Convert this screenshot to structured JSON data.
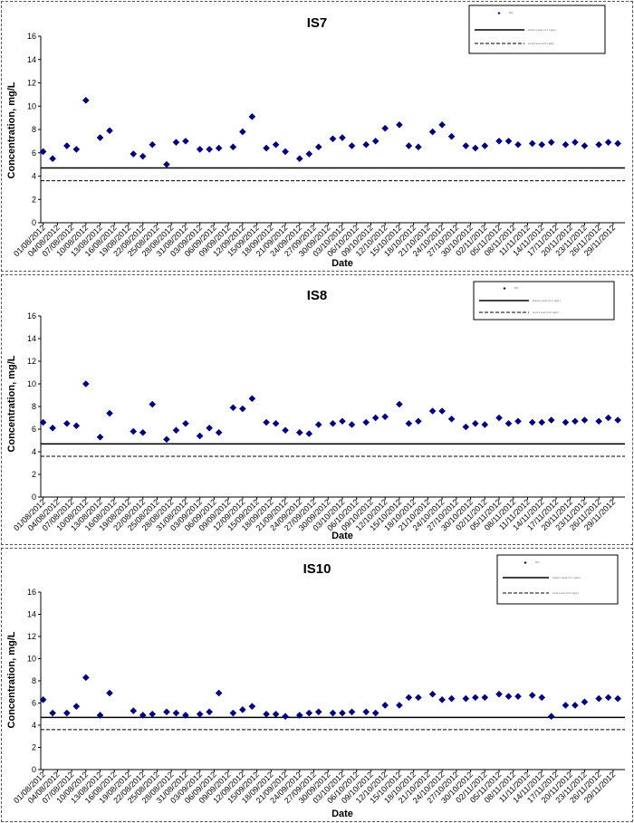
{
  "chart_data": [
    {
      "type": "scatter",
      "title": "IS7",
      "xlabel": "Date",
      "ylabel": "Concentration, mg/L",
      "ylim": [
        0,
        16
      ],
      "yticks": [
        "0",
        "2",
        "4",
        "6",
        "8",
        "10",
        "12",
        "14",
        "16"
      ],
      "x_tick_labels": [
        "01/08/2012",
        "04/08/2012",
        "07/08/2012",
        "10/08/2012",
        "13/08/2012",
        "16/08/2012",
        "19/08/2012",
        "22/08/2012",
        "25/08/2012",
        "28/08/2012",
        "31/08/2012",
        "03/09/2012",
        "06/09/2012",
        "09/09/2012",
        "12/09/2012",
        "15/09/2012",
        "18/09/2012",
        "21/09/2012",
        "24/09/2012",
        "27/09/2012",
        "30/09/2012",
        "03/10/2012",
        "06/10/2012",
        "09/10/2012",
        "12/10/2012",
        "15/10/2012",
        "18/10/2012",
        "21/10/2012",
        "24/10/2012",
        "27/10/2012",
        "30/10/2012",
        "02/11/2012",
        "05/11/2012",
        "08/11/2012",
        "11/11/2012",
        "14/11/2012",
        "17/11/2012",
        "20/11/2012",
        "23/11/2012",
        "26/11/2012",
        "29/11/2012"
      ],
      "legend": {
        "position": "top-right",
        "entries": [
          "DO",
          "Action Level (4.7 mg/L)",
          "Limit Level (3.6 mg/L)"
        ]
      },
      "hlines": [
        {
          "name": "Action Level (4.7 mg/L)",
          "value": 4.7,
          "style": "solid"
        },
        {
          "name": "Limit Level (3.6 mg/L)",
          "value": 3.6,
          "style": "dashed"
        }
      ],
      "series": [
        {
          "name": "DO",
          "color": "#000080",
          "points": [
            [
              "01/08/2012",
              6.1
            ],
            [
              "03/08/2012",
              5.5
            ],
            [
              "06/08/2012",
              6.6
            ],
            [
              "08/08/2012",
              6.3
            ],
            [
              "10/08/2012",
              10.5
            ],
            [
              "13/08/2012",
              7.3
            ],
            [
              "15/08/2012",
              7.9
            ],
            [
              "20/08/2012",
              5.9
            ],
            [
              "22/08/2012",
              5.7
            ],
            [
              "24/08/2012",
              6.7
            ],
            [
              "27/08/2012",
              5.0
            ],
            [
              "29/08/2012",
              6.9
            ],
            [
              "31/08/2012",
              7.0
            ],
            [
              "03/09/2012",
              6.3
            ],
            [
              "05/09/2012",
              6.3
            ],
            [
              "07/09/2012",
              6.4
            ],
            [
              "10/09/2012",
              6.5
            ],
            [
              "12/09/2012",
              7.8
            ],
            [
              "14/09/2012",
              9.1
            ],
            [
              "17/09/2012",
              6.4
            ],
            [
              "19/09/2012",
              6.7
            ],
            [
              "21/09/2012",
              6.1
            ],
            [
              "24/09/2012",
              5.5
            ],
            [
              "26/09/2012",
              5.9
            ],
            [
              "28/09/2012",
              6.5
            ],
            [
              "01/10/2012",
              7.2
            ],
            [
              "03/10/2012",
              7.3
            ],
            [
              "05/10/2012",
              6.6
            ],
            [
              "08/10/2012",
              6.7
            ],
            [
              "10/10/2012",
              7.0
            ],
            [
              "12/10/2012",
              8.1
            ],
            [
              "15/10/2012",
              8.4
            ],
            [
              "17/10/2012",
              6.6
            ],
            [
              "19/10/2012",
              6.5
            ],
            [
              "22/10/2012",
              7.8
            ],
            [
              "24/10/2012",
              8.4
            ],
            [
              "26/10/2012",
              7.4
            ],
            [
              "29/10/2012",
              6.6
            ],
            [
              "31/10/2012",
              6.4
            ],
            [
              "02/11/2012",
              6.6
            ],
            [
              "05/11/2012",
              7.0
            ],
            [
              "07/11/2012",
              7.0
            ],
            [
              "09/11/2012",
              6.7
            ],
            [
              "12/11/2012",
              6.8
            ],
            [
              "14/11/2012",
              6.7
            ],
            [
              "16/11/2012",
              6.9
            ],
            [
              "19/11/2012",
              6.7
            ],
            [
              "21/11/2012",
              6.9
            ],
            [
              "23/11/2012",
              6.6
            ],
            [
              "26/11/2012",
              6.7
            ],
            [
              "28/11/2012",
              6.9
            ],
            [
              "30/11/2012",
              6.8
            ]
          ]
        }
      ]
    },
    {
      "type": "scatter",
      "title": "IS8",
      "xlabel": "Date",
      "ylabel": "Concentration, mg/L",
      "ylim": [
        0,
        16
      ],
      "yticks": [
        "0",
        "2",
        "4",
        "6",
        "8",
        "10",
        "12",
        "14",
        "16"
      ],
      "x_tick_labels": [
        "01/08/2012",
        "04/08/2012",
        "07/08/2012",
        "10/08/2012",
        "13/08/2012",
        "16/08/2012",
        "19/08/2012",
        "22/08/2012",
        "25/08/2012",
        "28/08/2012",
        "31/08/2012",
        "03/09/2012",
        "06/09/2012",
        "09/09/2012",
        "12/09/2012",
        "15/09/2012",
        "18/09/2012",
        "21/09/2012",
        "24/09/2012",
        "27/09/2012",
        "30/09/2012",
        "03/10/2012",
        "06/10/2012",
        "09/10/2012",
        "12/10/2012",
        "15/10/2012",
        "18/10/2012",
        "21/10/2012",
        "24/10/2012",
        "27/10/2012",
        "30/10/2012",
        "02/11/2012",
        "05/11/2012",
        "08/11/2012",
        "11/11/2012",
        "14/11/2012",
        "17/11/2012",
        "20/11/2012",
        "23/11/2012",
        "26/11/2012",
        "29/11/2012"
      ],
      "legend": {
        "position": "top-right",
        "entries": [
          "DO",
          "Action Level (4.7 mg/L)",
          "Limit Level (3.6 mg/L)"
        ]
      },
      "hlines": [
        {
          "name": "Action Level (4.7 mg/L)",
          "value": 4.7,
          "style": "solid"
        },
        {
          "name": "Limit Level (3.6 mg/L)",
          "value": 3.6,
          "style": "dashed"
        }
      ],
      "series": [
        {
          "name": "DO",
          "color": "#000080",
          "points": [
            [
              "01/08/2012",
              6.6
            ],
            [
              "03/08/2012",
              6.1
            ],
            [
              "06/08/2012",
              6.5
            ],
            [
              "08/08/2012",
              6.3
            ],
            [
              "10/08/2012",
              10.0
            ],
            [
              "13/08/2012",
              5.3
            ],
            [
              "15/08/2012",
              7.4
            ],
            [
              "20/08/2012",
              5.8
            ],
            [
              "22/08/2012",
              5.7
            ],
            [
              "24/08/2012",
              8.2
            ],
            [
              "27/08/2012",
              5.1
            ],
            [
              "29/08/2012",
              5.9
            ],
            [
              "31/08/2012",
              6.5
            ],
            [
              "03/09/2012",
              5.4
            ],
            [
              "05/09/2012",
              6.1
            ],
            [
              "07/09/2012",
              5.7
            ],
            [
              "10/09/2012",
              7.9
            ],
            [
              "12/09/2012",
              7.8
            ],
            [
              "14/09/2012",
              8.7
            ],
            [
              "17/09/2012",
              6.6
            ],
            [
              "19/09/2012",
              6.5
            ],
            [
              "21/09/2012",
              5.9
            ],
            [
              "24/09/2012",
              5.7
            ],
            [
              "26/09/2012",
              5.6
            ],
            [
              "28/09/2012",
              6.4
            ],
            [
              "01/10/2012",
              6.5
            ],
            [
              "03/10/2012",
              6.7
            ],
            [
              "05/10/2012",
              6.4
            ],
            [
              "08/10/2012",
              6.6
            ],
            [
              "10/10/2012",
              7.0
            ],
            [
              "12/10/2012",
              7.1
            ],
            [
              "15/10/2012",
              8.2
            ],
            [
              "17/10/2012",
              6.5
            ],
            [
              "19/10/2012",
              6.7
            ],
            [
              "22/10/2012",
              7.6
            ],
            [
              "24/10/2012",
              7.6
            ],
            [
              "26/10/2012",
              6.9
            ],
            [
              "29/10/2012",
              6.2
            ],
            [
              "31/10/2012",
              6.5
            ],
            [
              "02/11/2012",
              6.4
            ],
            [
              "05/11/2012",
              7.0
            ],
            [
              "07/11/2012",
              6.5
            ],
            [
              "09/11/2012",
              6.7
            ],
            [
              "12/11/2012",
              6.6
            ],
            [
              "14/11/2012",
              6.6
            ],
            [
              "16/11/2012",
              6.8
            ],
            [
              "19/11/2012",
              6.6
            ],
            [
              "21/11/2012",
              6.7
            ],
            [
              "23/11/2012",
              6.8
            ],
            [
              "26/11/2012",
              6.7
            ],
            [
              "28/11/2012",
              7.0
            ],
            [
              "30/11/2012",
              6.8
            ]
          ]
        }
      ]
    },
    {
      "type": "scatter",
      "title": "IS10",
      "xlabel": "Date",
      "ylabel": "Concentration, mg/L",
      "ylim": [
        0,
        16
      ],
      "yticks": [
        "0",
        "2",
        "4",
        "6",
        "8",
        "10",
        "12",
        "14",
        "16"
      ],
      "x_tick_labels": [
        "01/08/2012",
        "04/08/2012",
        "07/08/2012",
        "10/08/2012",
        "13/08/2012",
        "16/08/2012",
        "19/08/2012",
        "22/08/2012",
        "25/08/2012",
        "28/08/2012",
        "31/08/2012",
        "03/09/2012",
        "06/09/2012",
        "09/09/2012",
        "12/09/2012",
        "15/09/2012",
        "18/09/2012",
        "21/09/2012",
        "24/09/2012",
        "27/09/2012",
        "30/09/2012",
        "03/10/2012",
        "06/10/2012",
        "09/10/2012",
        "12/10/2012",
        "15/10/2012",
        "18/10/2012",
        "21/10/2012",
        "24/10/2012",
        "27/10/2012",
        "30/10/2012",
        "02/11/2012",
        "05/11/2012",
        "08/11/2012",
        "11/11/2012",
        "14/11/2012",
        "17/11/2012",
        "20/11/2012",
        "23/11/2012",
        "26/11/2012",
        "29/11/2012"
      ],
      "legend": {
        "position": "top-right",
        "entries": [
          "DO",
          "Action Level (4.7 mg/L)",
          "Limit Level (3.6 mg/L)"
        ]
      },
      "hlines": [
        {
          "name": "Action Level (4.7 mg/L)",
          "value": 4.7,
          "style": "solid"
        },
        {
          "name": "Limit Level (3.6 mg/L)",
          "value": 3.6,
          "style": "dashed"
        }
      ],
      "series": [
        {
          "name": "DO",
          "color": "#000080",
          "points": [
            [
              "01/08/2012",
              6.3
            ],
            [
              "03/08/2012",
              5.1
            ],
            [
              "06/08/2012",
              5.1
            ],
            [
              "08/08/2012",
              5.7
            ],
            [
              "10/08/2012",
              8.3
            ],
            [
              "13/08/2012",
              4.9
            ],
            [
              "15/08/2012",
              6.9
            ],
            [
              "20/08/2012",
              5.3
            ],
            [
              "22/08/2012",
              4.9
            ],
            [
              "24/08/2012",
              5.0
            ],
            [
              "27/08/2012",
              5.2
            ],
            [
              "29/08/2012",
              5.1
            ],
            [
              "31/08/2012",
              4.9
            ],
            [
              "03/09/2012",
              5.0
            ],
            [
              "05/09/2012",
              5.2
            ],
            [
              "07/09/2012",
              6.9
            ],
            [
              "10/09/2012",
              5.1
            ],
            [
              "12/09/2012",
              5.4
            ],
            [
              "14/09/2012",
              5.7
            ],
            [
              "17/09/2012",
              5.0
            ],
            [
              "19/09/2012",
              5.0
            ],
            [
              "21/09/2012",
              4.8
            ],
            [
              "24/09/2012",
              4.9
            ],
            [
              "26/09/2012",
              5.1
            ],
            [
              "28/09/2012",
              5.2
            ],
            [
              "01/10/2012",
              5.1
            ],
            [
              "03/10/2012",
              5.1
            ],
            [
              "05/10/2012",
              5.2
            ],
            [
              "08/10/2012",
              5.2
            ],
            [
              "10/10/2012",
              5.1
            ],
            [
              "12/10/2012",
              5.8
            ],
            [
              "15/10/2012",
              5.8
            ],
            [
              "17/10/2012",
              6.5
            ],
            [
              "19/10/2012",
              6.5
            ],
            [
              "22/10/2012",
              6.8
            ],
            [
              "24/10/2012",
              6.3
            ],
            [
              "26/10/2012",
              6.4
            ],
            [
              "29/10/2012",
              6.4
            ],
            [
              "31/10/2012",
              6.5
            ],
            [
              "02/11/2012",
              6.5
            ],
            [
              "05/11/2012",
              6.8
            ],
            [
              "07/11/2012",
              6.6
            ],
            [
              "09/11/2012",
              6.6
            ],
            [
              "12/11/2012",
              6.7
            ],
            [
              "14/11/2012",
              6.5
            ],
            [
              "16/11/2012",
              4.8
            ],
            [
              "19/11/2012",
              5.8
            ],
            [
              "21/11/2012",
              5.8
            ],
            [
              "23/11/2012",
              6.1
            ],
            [
              "26/11/2012",
              6.4
            ],
            [
              "28/11/2012",
              6.5
            ],
            [
              "30/11/2012",
              6.4
            ]
          ]
        }
      ]
    }
  ]
}
